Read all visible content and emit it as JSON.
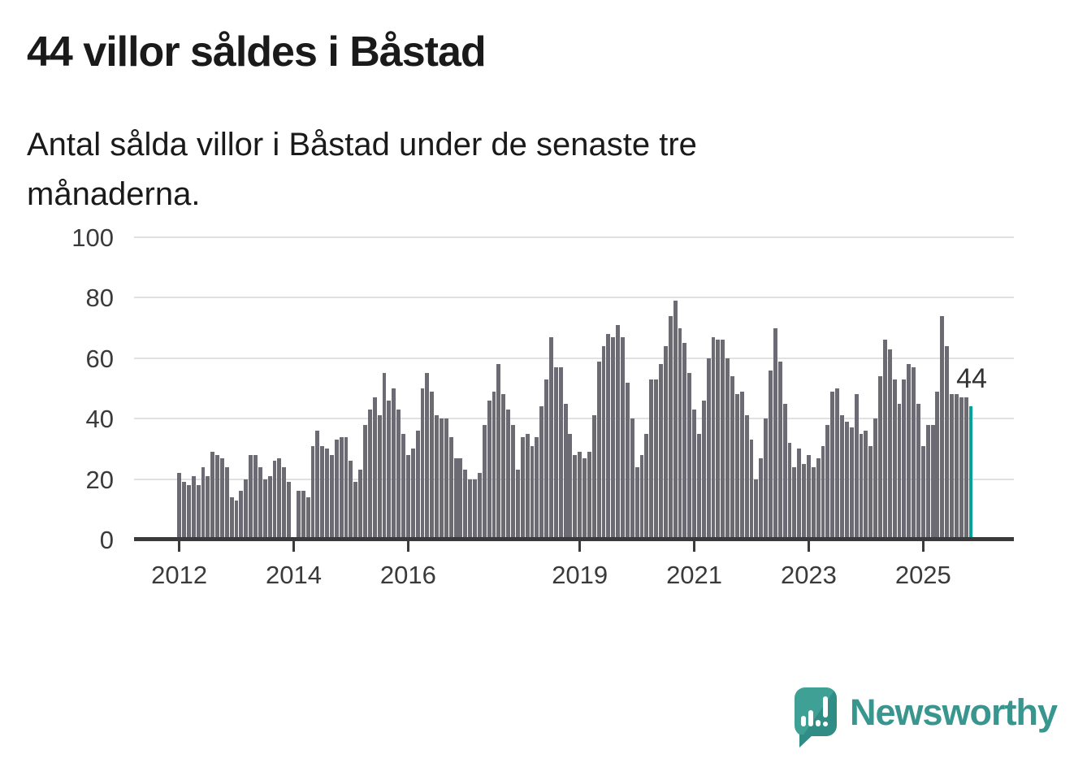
{
  "header": {
    "title": "44 villor såldes i Båstad",
    "subtitle_lines": [
      "Antal sålda villor i Båstad under de senaste tre",
      "månaderna."
    ]
  },
  "colors": {
    "bar": "#6c6b73",
    "accent": "#00a29b",
    "axis": "#3a3a3c",
    "gridline": "#e1e1e1",
    "text": "#1a1a1a",
    "brand_teal": "#38968e"
  },
  "branding": {
    "wordmark": "Newsworthy",
    "logo_icon": "speech-bubble-bar-chart-icon"
  },
  "chart_data": {
    "type": "bar",
    "frequency": "monthly",
    "start_month": "2012-01",
    "end_month": "2025-11",
    "ylim": [
      0,
      100
    ],
    "y_ticks": [
      0,
      20,
      40,
      60,
      80,
      100
    ],
    "x_tick_years": [
      2012,
      2014,
      2016,
      2019,
      2021,
      2023,
      2025
    ],
    "grid": true,
    "legend": "none",
    "highlight_last_bar": true,
    "last_bar_label": "44",
    "values": [
      22,
      19,
      18,
      21,
      18,
      24,
      21,
      29,
      28,
      27,
      24,
      14,
      13,
      16,
      20,
      28,
      28,
      24,
      20,
      21,
      26,
      27,
      24,
      19,
      0,
      16,
      16,
      14,
      31,
      36,
      31,
      30,
      28,
      33,
      34,
      34,
      26,
      19,
      23,
      38,
      43,
      47,
      41,
      55,
      46,
      50,
      43,
      35,
      28,
      30,
      36,
      50,
      55,
      49,
      41,
      40,
      40,
      34,
      27,
      27,
      23,
      20,
      20,
      22,
      38,
      46,
      49,
      58,
      48,
      43,
      38,
      23,
      34,
      35,
      31,
      34,
      44,
      53,
      67,
      57,
      57,
      45,
      35,
      28,
      29,
      27,
      29,
      41,
      59,
      64,
      68,
      67,
      71,
      67,
      52,
      40,
      24,
      28,
      35,
      53,
      53,
      58,
      64,
      74,
      79,
      70,
      65,
      55,
      43,
      35,
      46,
      60,
      67,
      66,
      66,
      60,
      54,
      48,
      49,
      41,
      33,
      20,
      27,
      40,
      56,
      70,
      59,
      45,
      32,
      24,
      30,
      25,
      28,
      24,
      27,
      31,
      38,
      49,
      50,
      41,
      39,
      37,
      48,
      35,
      36,
      31,
      40,
      54,
      66,
      63,
      53,
      45,
      53,
      58,
      57,
      45,
      31,
      38,
      38,
      49,
      74,
      64,
      48,
      48,
      47,
      47,
      44
    ]
  }
}
